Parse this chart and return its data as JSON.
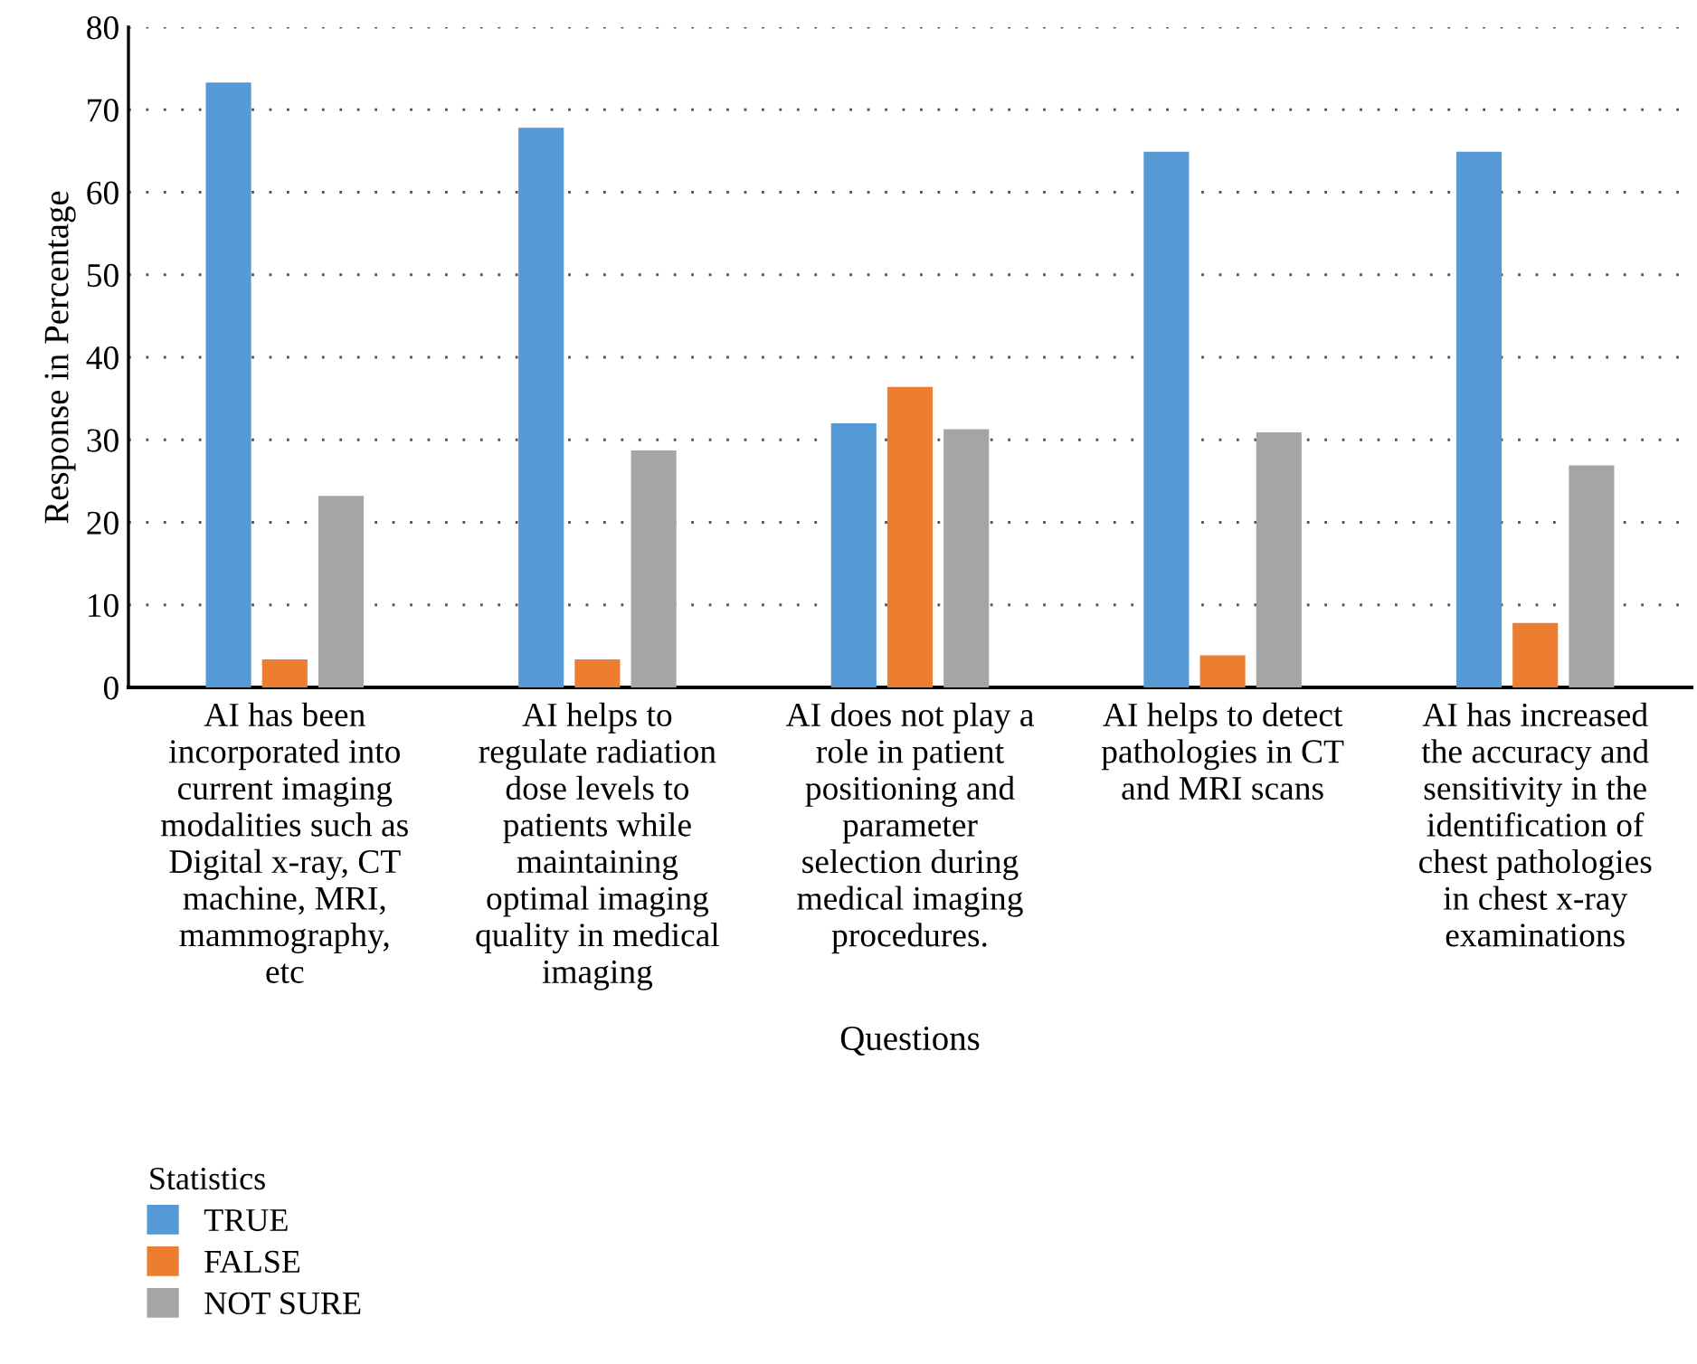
{
  "chart_data": {
    "type": "bar",
    "xlabel": "Questions",
    "ylabel": "Response in Percentage",
    "legend_title": "Statistics",
    "categories": [
      "AI has been\nincorporated into\ncurrent imaging\nmodalities such as\nDigital x-ray, CT\nmachine, MRI,\nmammography,\netc",
      "AI helps to\nregulate radiation\ndose levels to\npatients while\nmaintaining\noptimal imaging\nquality in medical\nimaging",
      "AI does not play a\nrole in patient\npositioning and\nparameter\nselection during\nmedical imaging\nprocedures.",
      "AI helps to detect\npathologies in CT\nand MRI scans",
      "AI has increased\nthe accuracy and\nsensitivity in the\nidentification of\nchest pathologies\nin chest x-ray\nexaminations"
    ],
    "series": [
      {
        "name": "TRUE",
        "color": "#559ad4",
        "values": [
          73.3,
          67.8,
          32.0,
          64.9,
          64.9
        ]
      },
      {
        "name": "FALSE",
        "color": "#ed7d31",
        "values": [
          3.4,
          3.4,
          36.4,
          3.9,
          7.8
        ]
      },
      {
        "name": "NOT SURE",
        "color": "#a5a5a5",
        "values": [
          23.2,
          28.7,
          31.3,
          30.9,
          26.9
        ]
      }
    ],
    "ylim": [
      0,
      80
    ],
    "yticks": [
      0,
      10,
      20,
      30,
      40,
      50,
      60,
      70,
      80
    ],
    "grid": "y",
    "legend": "bottom left"
  }
}
